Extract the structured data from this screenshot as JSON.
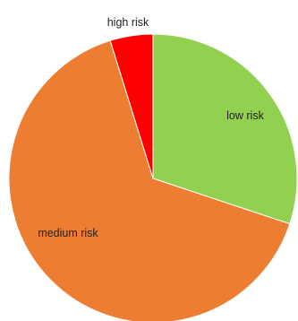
{
  "chart_data": {
    "type": "pie",
    "title": "",
    "slices": [
      {
        "label": "low risk",
        "value": 30.1,
        "color": "#92d050"
      },
      {
        "label": "medium risk",
        "value": 65.1,
        "color": "#ed7d31"
      },
      {
        "label": "high risk",
        "value": 4.8,
        "color": "#ff0000"
      }
    ],
    "legend": "none",
    "label_position": "inside"
  }
}
